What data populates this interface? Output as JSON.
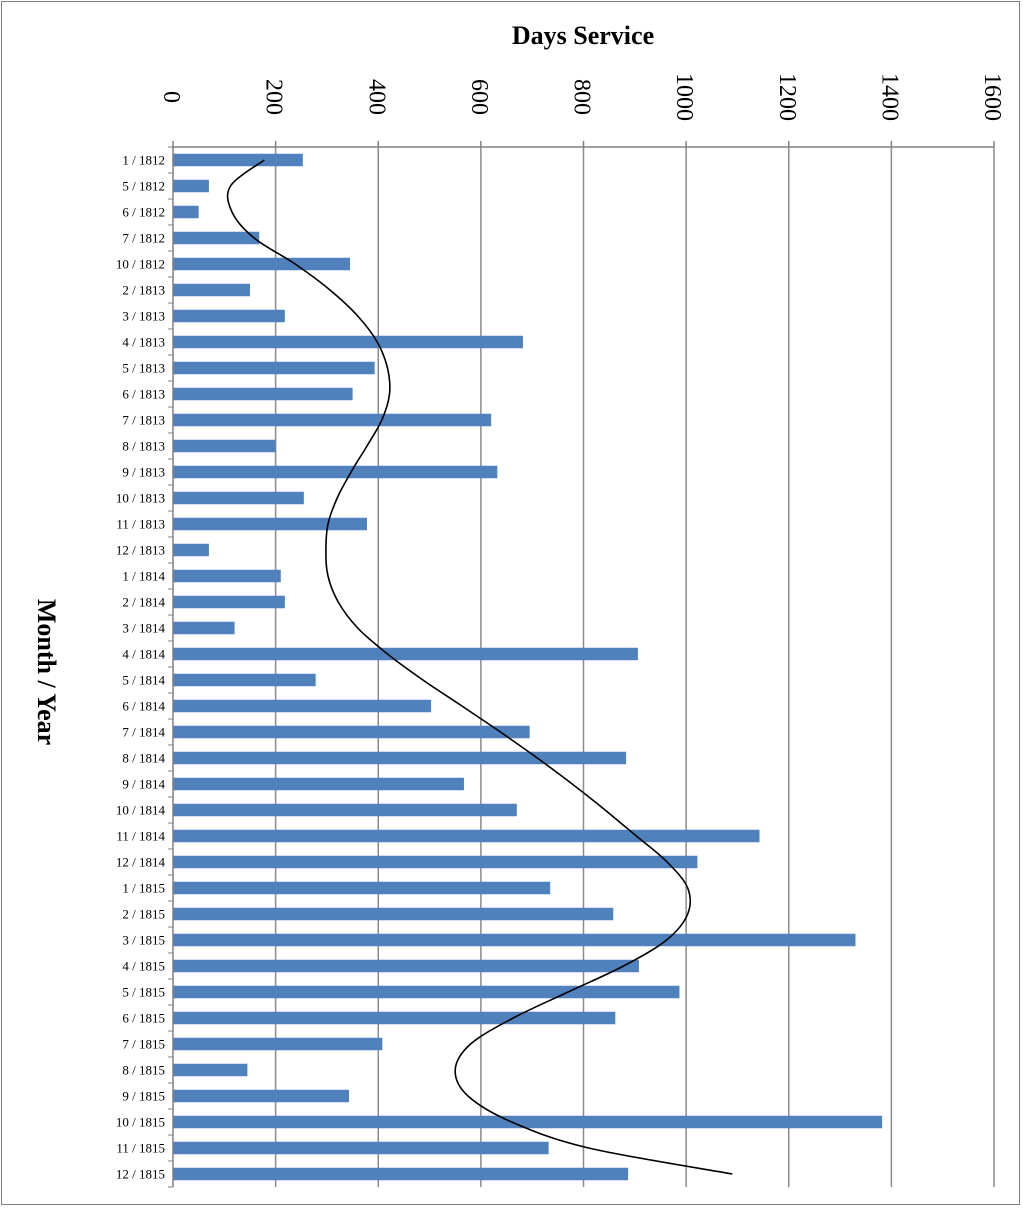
{
  "chart_data": {
    "type": "bar",
    "orientation": "horizontal",
    "xlabel": "Days Service",
    "ylabel": "Month / Year",
    "xlim": [
      0,
      1600
    ],
    "x_ticks": [
      "0",
      "200",
      "400",
      "600",
      "800",
      "1000",
      "1200",
      "1400",
      "1600"
    ],
    "grid": true,
    "bar_color": "#4f81bd",
    "trendline_color": "#000000",
    "categories": [
      "1 / 1812",
      "5 / 1812",
      "6 / 1812",
      "7 / 1812",
      "10 / 1812",
      "2 / 1813",
      "3 / 1813",
      "4 / 1813",
      "5 / 1813",
      "6 / 1813",
      "7 / 1813",
      "8 / 1813",
      "9 / 1813",
      "10 / 1813",
      "11 / 1813",
      "12 / 1813",
      "1 / 1814",
      "2 / 1814",
      "3 / 1814",
      "4 / 1814",
      "5 / 1814",
      "6 / 1814",
      "7 / 1814",
      "8 / 1814",
      "9 / 1814",
      "10 / 1814",
      "11 / 1814",
      "12 / 1814",
      "1 / 1815",
      "2 / 1815",
      "3 / 1815",
      "4 / 1815",
      "5 / 1815",
      "6 / 1815",
      "7 / 1815",
      "8 / 1815",
      "9 / 1815",
      "10 / 1815",
      "11 / 1815",
      "12 / 1815"
    ],
    "values": [
      253,
      70,
      50,
      168,
      345,
      150,
      218,
      682,
      393,
      350,
      620,
      200,
      632,
      255,
      378,
      70,
      210,
      218,
      120,
      906,
      278,
      503,
      695,
      883,
      567,
      670,
      1143,
      1022,
      735,
      858,
      1330,
      908,
      987,
      862,
      408,
      145,
      343,
      1382,
      732,
      887
    ],
    "trendline": [
      178,
      112,
      115,
      158,
      238,
      306,
      360,
      398,
      418,
      422,
      407,
      378,
      347,
      320,
      302,
      298,
      302,
      322,
      360,
      418,
      487,
      563,
      638,
      710,
      778,
      842,
      903,
      963,
      1003,
      1003,
      962,
      878,
      770,
      663,
      580,
      550,
      575,
      660,
      810,
      1090
    ]
  }
}
